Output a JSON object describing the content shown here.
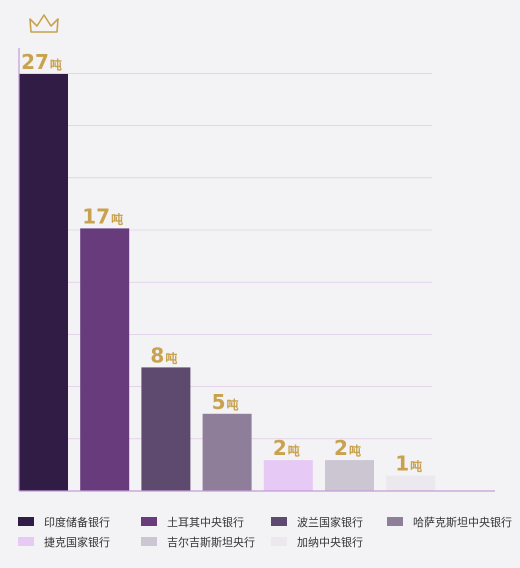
{
  "chart_data": {
    "type": "bar",
    "categories": [
      "印度储备银行",
      "土耳其中央银行",
      "波兰国家银行",
      "哈萨克斯坦中央银行",
      "捷克国家银行",
      "吉尔吉斯斯坦央行",
      "加纳中央银行"
    ],
    "values": [
      27,
      17,
      8,
      5,
      2,
      2,
      1
    ],
    "value_labels": [
      "27",
      "17",
      "8",
      "5",
      "2",
      "2",
      "1"
    ],
    "unit": "吨",
    "colors": [
      "#311c45",
      "#673b7c",
      "#5e4a6e",
      "#8f7e99",
      "#e7c9f5",
      "#cbc6d2",
      "#ebe9ee"
    ],
    "ylim": [
      0,
      27
    ],
    "grid": true,
    "legend_position": "bottom",
    "highlight_icon": "crown-icon",
    "axis_color": "#c49cd8",
    "label_color": "#c8a24e"
  }
}
